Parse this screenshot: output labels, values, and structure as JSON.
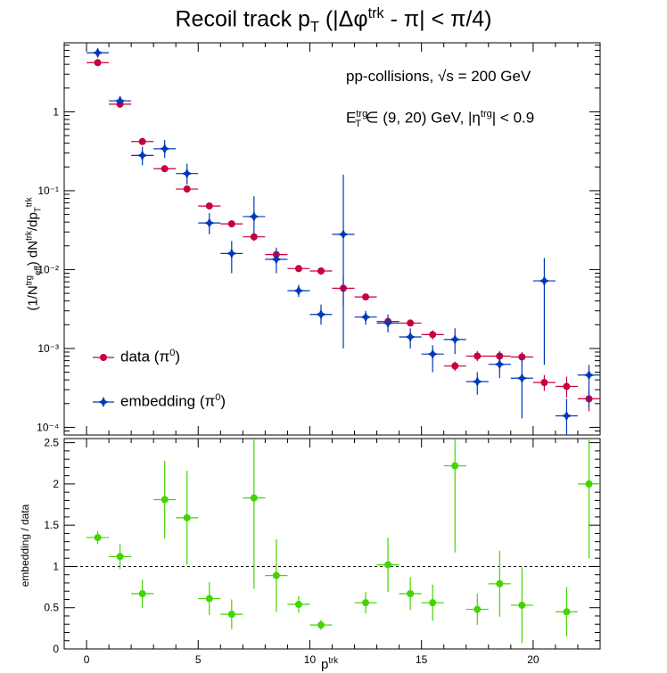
{
  "title_text": "Recoil track p",
  "title_sub": "T",
  "title_rest1": " (|Δφ",
  "title_sup": "trk",
  "title_rest2": " - π| < π/4)",
  "annot1_prefix": "pp-collisions, ",
  "annot1_sqrt": "√s",
  "annot1_suffix": " = 200 GeV",
  "annot2_E": "E",
  "annot2_sup": "trg",
  "annot2_sub": "T",
  "annot2_mid": " ∈ (9, 20) GeV, |η",
  "annot2_sup2": "trg",
  "annot2_end": "| < 0.9",
  "ylabel_top": {
    "p1": "(1/N",
    "s1": "trg",
    "b1": "eff",
    "p2": ") dN",
    "s2": "trk",
    "p3": "/dp",
    "b3": "T",
    "s3": "trk"
  },
  "ylabel_bottom": "embedding / data",
  "xlabel_main": "p",
  "xlabel_sup": "trk",
  "legend": {
    "data_main": "data (π",
    "data_sup": "0",
    "data_end": ")",
    "emb_main": "embedding (π",
    "emb_sup": "0",
    "emb_end": ")"
  },
  "colors": {
    "data": "#c8003c",
    "embedding": "#0038b8",
    "ratio": "#44d400"
  },
  "chart_data": [
    {
      "type": "scatter",
      "yscale": "log",
      "ylim": [
        8e-05,
        7.5
      ],
      "xlim": [
        -1,
        23
      ],
      "ytick_labels": [
        "10⁻⁴",
        "10⁻³",
        "10⁻²",
        "10⁻¹",
        "1"
      ],
      "series": [
        {
          "name": "data (π0)",
          "x": [
            0.5,
            1.5,
            2.5,
            3.5,
            4.5,
            5.5,
            6.5,
            7.5,
            8.5,
            9.5,
            10.5,
            11.5,
            12.5,
            13.5,
            14.5,
            15.5,
            16.5,
            17.5,
            18.5,
            19.5,
            20.5,
            21.5,
            22.5
          ],
          "y": [
            4.2,
            1.25,
            0.42,
            0.19,
            0.105,
            0.064,
            0.038,
            0.026,
            0.0155,
            0.0103,
            0.0096,
            0.0058,
            0.0045,
            0.0022,
            0.0021,
            0.0015,
            0.0006,
            0.0008,
            0.0008,
            0.00078,
            0.00037,
            0.00033,
            0.00023
          ],
          "yerr_low": [
            4.0,
            1.2,
            0.39,
            0.175,
            0.095,
            0.059,
            0.035,
            0.023,
            0.014,
            0.0093,
            0.0087,
            0.0035,
            0.0041,
            0.002,
            0.0019,
            0.0013,
            0.00052,
            0.00069,
            0.00069,
            0.00067,
            0.00029,
            0.00024,
            0.00016
          ],
          "yerr_high": [
            4.4,
            1.3,
            0.45,
            0.205,
            0.115,
            0.069,
            0.041,
            0.029,
            0.017,
            0.0113,
            0.0105,
            0.008,
            0.0049,
            0.0024,
            0.0023,
            0.0017,
            0.00068,
            0.00093,
            0.00093,
            0.0009,
            0.00046,
            0.00044,
            0.0003
          ]
        },
        {
          "name": "embedding (π0)",
          "x": [
            0.5,
            1.5,
            2.5,
            3.5,
            4.5,
            5.5,
            6.5,
            7.5,
            8.5,
            9.5,
            10.5,
            11.5,
            12.5,
            13.5,
            14.5,
            15.5,
            16.5,
            17.5,
            18.5,
            19.5,
            20.5,
            21.5,
            22.5
          ],
          "y": [
            5.6,
            1.38,
            0.28,
            0.34,
            0.165,
            0.039,
            0.016,
            0.047,
            0.0135,
            0.0054,
            0.0027,
            0.028,
            0.0025,
            0.0021,
            0.0014,
            0.00085,
            0.0013,
            0.00038,
            0.00063,
            0.00042,
            0.0072,
            0.00014,
            0.00046
          ],
          "yerr_low": [
            5.1,
            1.2,
            0.21,
            0.26,
            0.12,
            0.028,
            0.009,
            0.028,
            0.009,
            0.0045,
            0.002,
            0.001,
            0.002,
            0.0016,
            0.001,
            0.0005,
            0.00085,
            0.00026,
            0.00042,
            0.00013,
            0.00062,
            6e-05,
            0.00018
          ],
          "yerr_high": [
            6.2,
            1.58,
            0.36,
            0.44,
            0.22,
            0.052,
            0.023,
            0.085,
            0.019,
            0.0064,
            0.0036,
            0.16,
            0.003,
            0.0027,
            0.0018,
            0.0011,
            0.0018,
            0.0005,
            0.0009,
            0.00075,
            0.014,
            0.00023,
            0.00062
          ]
        }
      ],
      "legend_position": "bottom-left"
    },
    {
      "type": "scatter",
      "ylim": [
        0,
        2.55
      ],
      "xlim": [
        -1,
        23
      ],
      "xticks": [
        0,
        5,
        10,
        15,
        20
      ],
      "yticks": [
        0,
        0.5,
        1,
        1.5,
        2,
        2.5
      ],
      "reference_line": 1,
      "series": [
        {
          "x": [
            0.5,
            1.5,
            2.5,
            3.5,
            4.5,
            5.5,
            6.5,
            7.5,
            8.5,
            9.5,
            10.5,
            11.5,
            12.5,
            13.5,
            14.5,
            15.5,
            16.5,
            17.5,
            18.5,
            19.5,
            20.5,
            21.5,
            22.5
          ],
          "y": [
            1.35,
            1.12,
            0.67,
            1.81,
            1.59,
            0.61,
            0.42,
            1.83,
            0.89,
            0.54,
            0.29,
            null,
            0.56,
            1.02,
            0.67,
            0.56,
            2.22,
            0.48,
            0.79,
            0.53,
            null,
            0.45,
            2.0
          ],
          "yerr": [
            0.08,
            0.15,
            0.17,
            0.47,
            0.57,
            0.2,
            0.18,
            1.1,
            0.44,
            0.1,
            0.06,
            null,
            0.13,
            0.33,
            0.2,
            0.22,
            1.05,
            0.19,
            0.4,
            0.46,
            null,
            0.3,
            0.9
          ]
        }
      ]
    }
  ]
}
